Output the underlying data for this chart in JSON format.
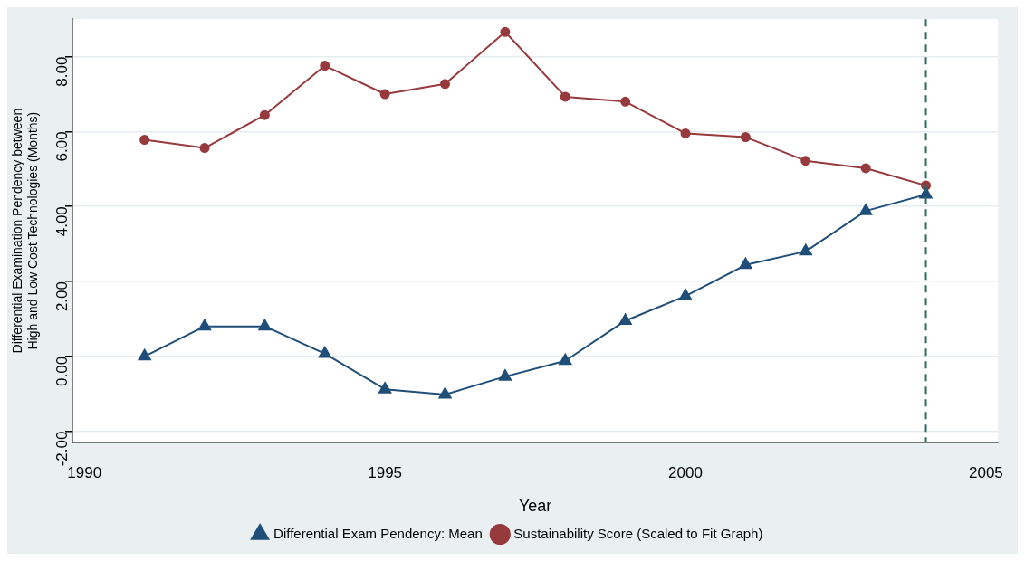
{
  "chart_data": {
    "type": "line",
    "xlabel": "Year",
    "ylabel": "Differential Examination Pendency between\nHigh and Low Cost Technologies (Months)",
    "x": [
      1991,
      1992,
      1993,
      1994,
      1995,
      1996,
      1997,
      1998,
      1999,
      2000,
      2001,
      2002,
      2003,
      2004
    ],
    "series": [
      {
        "name": "Differential Exam Pendency: Mean",
        "color": "#1f4e79",
        "marker": "triangle",
        "values": [
          0.0,
          0.8,
          0.8,
          0.07,
          -0.88,
          -1.02,
          -0.54,
          -0.12,
          0.95,
          1.61,
          2.44,
          2.8,
          3.88,
          4.32
        ]
      },
      {
        "name": "Sustainability Score (Scaled to Fit Graph)",
        "color": "#963a3d",
        "marker": "circle",
        "values": [
          5.78,
          5.56,
          6.44,
          7.76,
          7.0,
          7.27,
          8.66,
          6.93,
          6.8,
          5.95,
          5.85,
          5.22,
          5.02,
          4.56
        ]
      }
    ],
    "xlim": [
      1989.8,
      2005.2
    ],
    "xticks": [
      1990,
      1995,
      2000,
      2005
    ],
    "ylim": [
      -2.3,
      9
    ],
    "yticks": [
      {
        "value": -2,
        "label": "-2.00"
      },
      {
        "value": 0,
        "label": "0.00"
      },
      {
        "value": 2,
        "label": "2.00"
      },
      {
        "value": 4,
        "label": "4.00"
      },
      {
        "value": 6,
        "label": "6.00"
      },
      {
        "value": 8,
        "label": "8.00"
      }
    ],
    "ref_lines": [
      {
        "axis": "x",
        "value": 2004,
        "color": "#2e6b5e",
        "line_style": "dashed"
      }
    ],
    "grid": "y",
    "legend": "bottom",
    "line_style": "solid"
  }
}
